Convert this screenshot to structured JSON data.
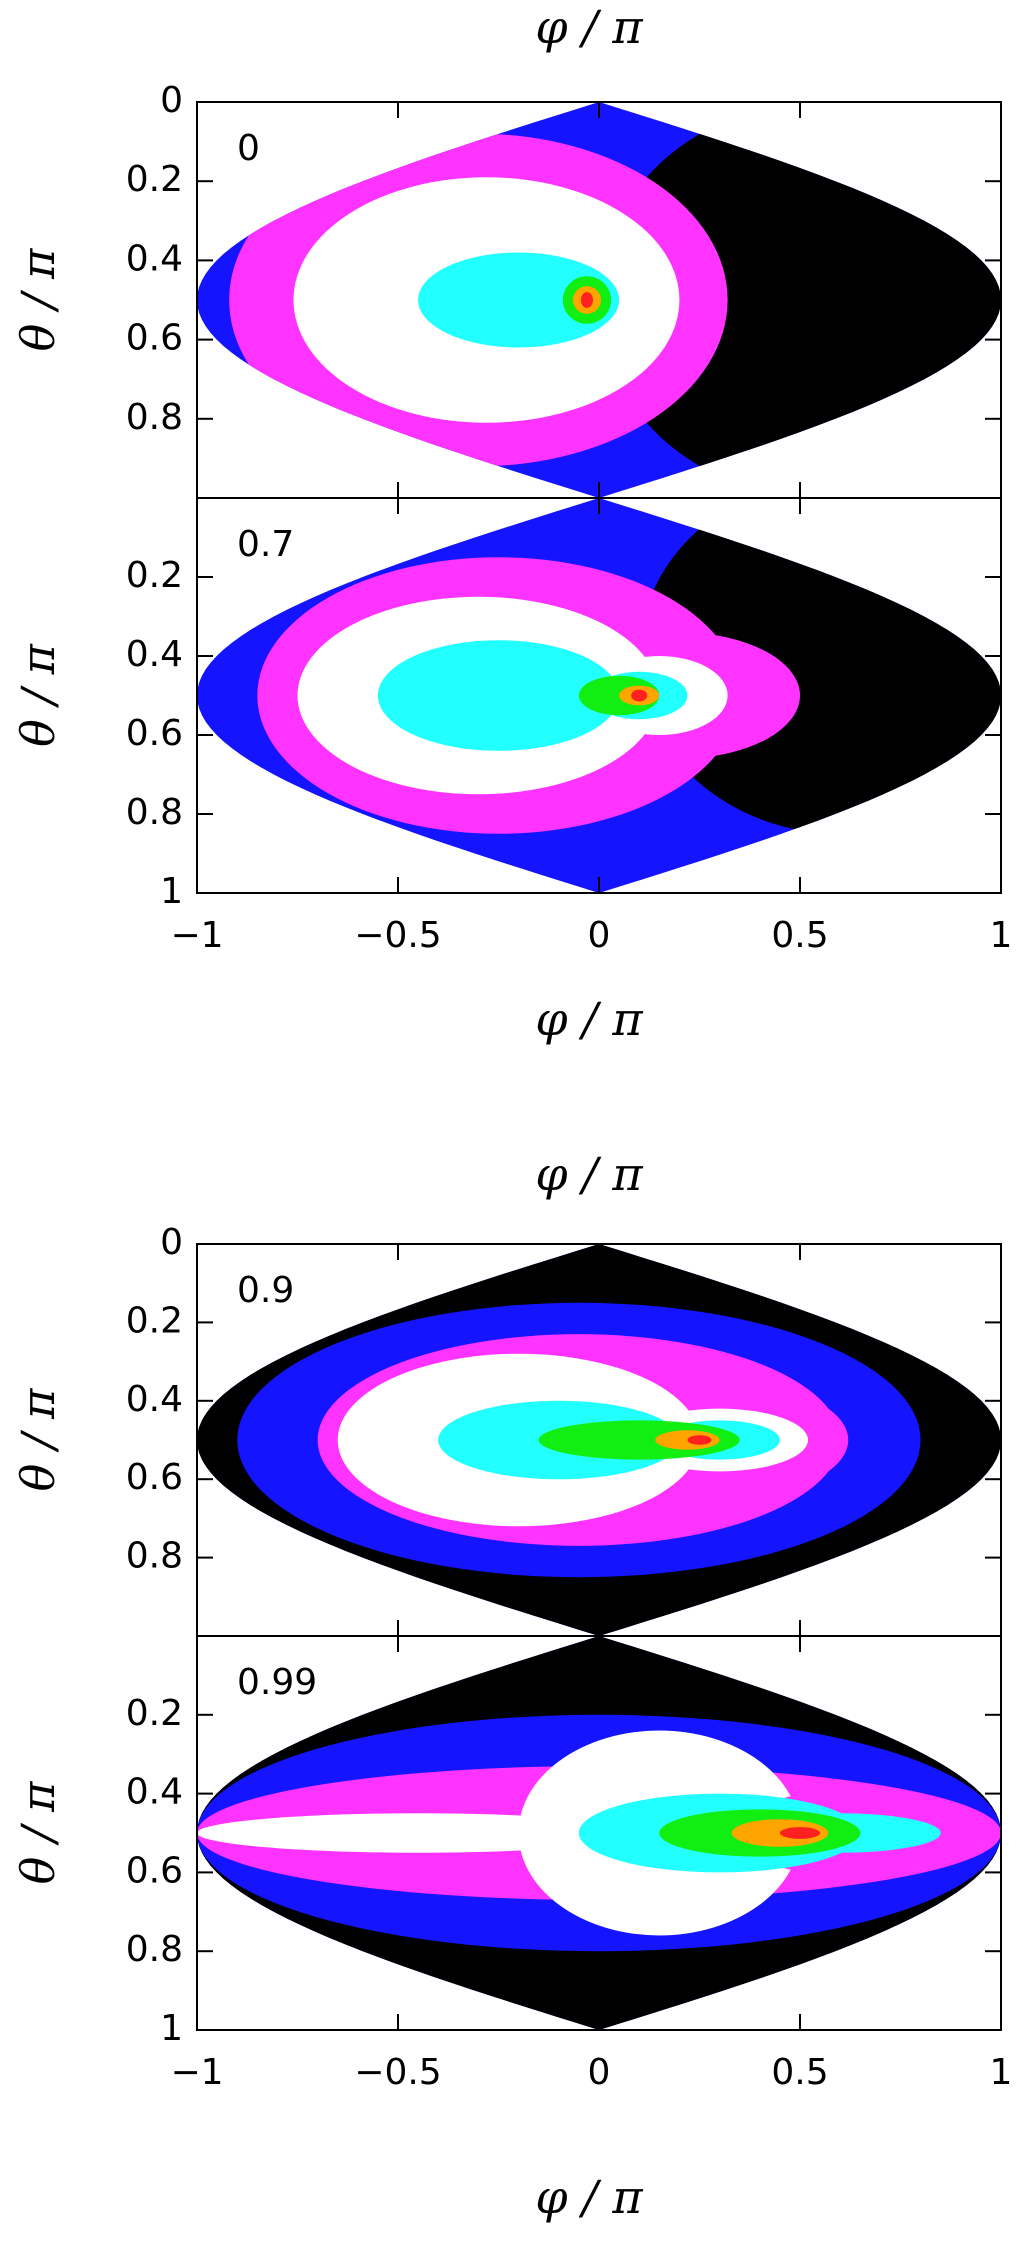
{
  "chart_data": [
    {
      "type": "map",
      "annotation": "0",
      "xlabel": "φ / π",
      "ylabel": "θ / π",
      "xlim": [
        -1,
        1
      ],
      "ylim": [
        0,
        1
      ],
      "yticks": [
        0,
        0.2,
        0.4,
        0.6,
        0.8
      ]
    },
    {
      "type": "map",
      "annotation": "0.7",
      "xlabel": "φ / π",
      "ylabel": "θ / π",
      "xlim": [
        -1,
        1
      ],
      "ylim": [
        0,
        1
      ],
      "yticks": [
        0.2,
        0.4,
        0.6,
        0.8,
        1
      ],
      "xticks": [
        {
          "value": -1,
          "label": "−1"
        },
        {
          "value": -0.5,
          "label": "−0.5"
        },
        0,
        0.5,
        1
      ]
    },
    {
      "type": "map",
      "annotation": "0.9",
      "xlabel": "φ / π",
      "ylabel": "θ / π",
      "xlim": [
        -1,
        1
      ],
      "ylim": [
        0,
        1
      ],
      "yticks": [
        0,
        0.2,
        0.4,
        0.6,
        0.8
      ]
    },
    {
      "type": "map",
      "annotation": "0.99",
      "xlabel": "φ / π",
      "ylabel": "θ / π",
      "xlim": [
        -1,
        1
      ],
      "ylim": [
        0,
        1
      ],
      "yticks": [
        0.2,
        0.4,
        0.6,
        0.8,
        1
      ],
      "xticks": [
        {
          "value": -1,
          "label": "−1"
        },
        {
          "value": -0.5,
          "label": "−0.5"
        },
        0,
        0.5,
        1
      ]
    }
  ]
}
